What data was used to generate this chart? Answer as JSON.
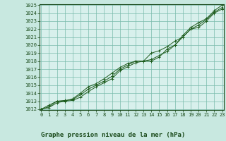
{
  "xlim": [
    0,
    23
  ],
  "ylim": [
    1012,
    1025
  ],
  "yticks": [
    1012,
    1013,
    1014,
    1015,
    1016,
    1017,
    1018,
    1019,
    1020,
    1021,
    1022,
    1023,
    1024,
    1025
  ],
  "xticks": [
    0,
    1,
    2,
    3,
    4,
    5,
    6,
    7,
    8,
    9,
    10,
    11,
    12,
    13,
    14,
    15,
    16,
    17,
    18,
    19,
    20,
    21,
    22,
    23
  ],
  "plot_bg": "#d8f0ec",
  "fig_bg": "#c8e8e0",
  "line_color": "#1e5c1e",
  "grid_color": "#7abcac",
  "line1_y": [
    1012.0,
    1012.3,
    1013.0,
    1013.1,
    1013.2,
    1013.8,
    1014.5,
    1015.0,
    1015.5,
    1016.1,
    1017.0,
    1017.5,
    1018.0,
    1018.0,
    1018.0,
    1018.5,
    1019.5,
    1020.0,
    1021.0,
    1022.0,
    1022.5,
    1023.2,
    1024.1,
    1024.7
  ],
  "line2_y": [
    1012.0,
    1012.5,
    1013.0,
    1013.0,
    1013.1,
    1013.5,
    1014.2,
    1014.8,
    1015.3,
    1015.8,
    1016.8,
    1017.3,
    1017.8,
    1018.0,
    1018.2,
    1018.7,
    1019.2,
    1020.0,
    1021.2,
    1022.2,
    1022.8,
    1023.3,
    1024.3,
    1025.0
  ],
  "line3_y": [
    1012.0,
    1012.2,
    1012.8,
    1013.0,
    1013.3,
    1014.0,
    1014.8,
    1015.2,
    1015.8,
    1016.5,
    1017.2,
    1017.7,
    1018.0,
    1018.0,
    1019.0,
    1019.3,
    1019.8,
    1020.5,
    1021.0,
    1022.0,
    1022.2,
    1023.0,
    1024.0,
    1024.5
  ],
  "font_color": "#1a4a1a",
  "tick_fontsize": 5.0,
  "label_fontsize": 6.5,
  "bottom_label": "Graphe pression niveau de la mer (hPa)"
}
